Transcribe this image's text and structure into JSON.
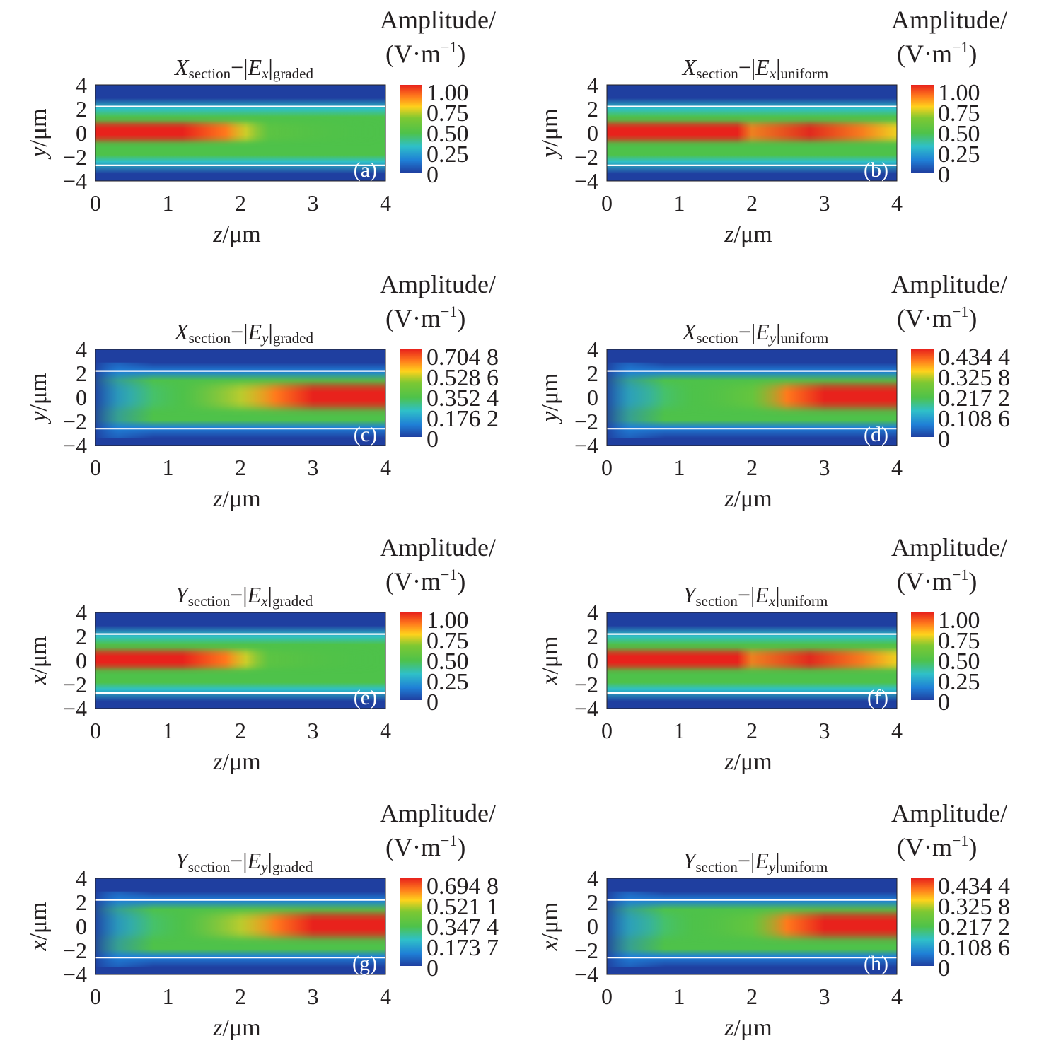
{
  "colors": {
    "jet": [
      "#1f3fa0",
      "#1f7fd6",
      "#2fc0c8",
      "#4ec24a",
      "#7dc832",
      "#ffd21c",
      "#ff7a1c",
      "#e8221c"
    ],
    "guide_line": "#ffffff",
    "frame": "#231f20"
  },
  "chart_data": [
    {
      "type": "heatmap",
      "panel_label": "(a)",
      "title": {
        "base": "X",
        "base_sub": "section",
        "dash": "−",
        "field": "E",
        "field_sub": "x",
        "suffix": "graded"
      },
      "xlabel": {
        "var": "z",
        "unit": "/μm"
      },
      "ylabel": {
        "var": "y",
        "unit": "/μm"
      },
      "xlim": [
        0,
        4
      ],
      "ylim": [
        -4,
        4
      ],
      "xticks": [
        "0",
        "1",
        "2",
        "3",
        "4"
      ],
      "yticks": [
        "4",
        "2",
        "0",
        "−2",
        "−4"
      ],
      "boundary_lines_y": [
        2.2,
        -2.7
      ],
      "colorbar": {
        "title": "Amplitude/",
        "unit": "(V·m",
        "unit_exp": "−1",
        "unit_close": ")",
        "ticks": [
          "1.00",
          "0.75",
          "0.50",
          "0.25",
          "0"
        ],
        "max": 1.0
      },
      "pattern": "Ex-graded"
    },
    {
      "type": "heatmap",
      "panel_label": "(b)",
      "title": {
        "base": "X",
        "base_sub": "section",
        "dash": "−",
        "field": "E",
        "field_sub": "x",
        "suffix": "uniform"
      },
      "xlabel": {
        "var": "z",
        "unit": "/μm"
      },
      "ylabel": {
        "var": "y",
        "unit": "/μm"
      },
      "xlim": [
        0,
        4
      ],
      "ylim": [
        -4,
        4
      ],
      "xticks": [
        "0",
        "1",
        "2",
        "3",
        "4"
      ],
      "yticks": [
        "4",
        "2",
        "0",
        "−2",
        "−4"
      ],
      "boundary_lines_y": [
        2.2,
        -2.7
      ],
      "colorbar": {
        "title": "Amplitude/",
        "unit": "(V·m",
        "unit_exp": "−1",
        "unit_close": ")",
        "ticks": [
          "1.00",
          "0.75",
          "0.50",
          "0.25",
          "0"
        ],
        "max": 1.0
      },
      "pattern": "Ex-uniform"
    },
    {
      "type": "heatmap",
      "panel_label": "(c)",
      "title": {
        "base": "X",
        "base_sub": "section",
        "dash": "−",
        "field": "E",
        "field_sub": "y",
        "suffix": "graded"
      },
      "xlabel": {
        "var": "z",
        "unit": "/μm"
      },
      "ylabel": {
        "var": "y",
        "unit": "/μm"
      },
      "xlim": [
        0,
        4
      ],
      "ylim": [
        -4,
        4
      ],
      "xticks": [
        "0",
        "1",
        "2",
        "3",
        "4"
      ],
      "yticks": [
        "4",
        "2",
        "0",
        "−2",
        "−4"
      ],
      "boundary_lines_y": [
        2.2,
        -2.6
      ],
      "colorbar": {
        "title": "Amplitude/",
        "unit": "(V·m",
        "unit_exp": "−1",
        "unit_close": ")",
        "ticks": [
          "0.704 8",
          "0.528 6",
          "0.352 4",
          "0.176 2",
          "0"
        ],
        "max": 0.7048
      },
      "pattern": "Ey-graded"
    },
    {
      "type": "heatmap",
      "panel_label": "(d)",
      "title": {
        "base": "X",
        "base_sub": "section",
        "dash": "−",
        "field": "E",
        "field_sub": "y",
        "suffix": "uniform"
      },
      "xlabel": {
        "var": "z",
        "unit": "/μm"
      },
      "ylabel": {
        "var": "y",
        "unit": "/μm"
      },
      "xlim": [
        0,
        4
      ],
      "ylim": [
        -4,
        4
      ],
      "xticks": [
        "0",
        "1",
        "2",
        "3",
        "4"
      ],
      "yticks": [
        "4",
        "2",
        "0",
        "−2",
        "−4"
      ],
      "boundary_lines_y": [
        2.2,
        -2.6
      ],
      "colorbar": {
        "title": "Amplitude/",
        "unit": "(V·m",
        "unit_exp": "−1",
        "unit_close": ")",
        "ticks": [
          "0.434 4",
          "0.325 8",
          "0.217 2",
          "0.108 6",
          "0"
        ],
        "max": 0.4344
      },
      "pattern": "Ey-uniform"
    },
    {
      "type": "heatmap",
      "panel_label": "(e)",
      "title": {
        "base": "Y",
        "base_sub": "section",
        "dash": "−",
        "field": "E",
        "field_sub": "x",
        "suffix": "graded"
      },
      "xlabel": {
        "var": "z",
        "unit": "/μm"
      },
      "ylabel": {
        "var": "x",
        "unit": "/μm"
      },
      "xlim": [
        0,
        4
      ],
      "ylim": [
        -4,
        4
      ],
      "xticks": [
        "0",
        "1",
        "2",
        "3",
        "4"
      ],
      "yticks": [
        "4",
        "2",
        "0",
        "−2",
        "−4"
      ],
      "boundary_lines_y": [
        2.2,
        -2.7
      ],
      "colorbar": {
        "title": "Amplitude/",
        "unit": "(V·m",
        "unit_exp": "−1",
        "unit_close": ")",
        "ticks": [
          "1.00",
          "0.75",
          "0.50",
          "0.25",
          "0"
        ],
        "max": 1.0
      },
      "pattern": "Ex-graded"
    },
    {
      "type": "heatmap",
      "panel_label": "(f)",
      "title": {
        "base": "Y",
        "base_sub": "section",
        "dash": "−",
        "field": "E",
        "field_sub": "x",
        "suffix": "uniform"
      },
      "xlabel": {
        "var": "z",
        "unit": "/μm"
      },
      "ylabel": {
        "var": "x",
        "unit": "/μm"
      },
      "xlim": [
        0,
        4
      ],
      "ylim": [
        -4,
        4
      ],
      "xticks": [
        "0",
        "1",
        "2",
        "3",
        "4"
      ],
      "yticks": [
        "4",
        "2",
        "0",
        "−2",
        "−4"
      ],
      "boundary_lines_y": [
        2.2,
        -2.7
      ],
      "colorbar": {
        "title": "Amplitude/",
        "unit": "(V·m",
        "unit_exp": "−1",
        "unit_close": ")",
        "ticks": [
          "1.00",
          "0.75",
          "0.50",
          "0.25",
          "0"
        ],
        "max": 1.0
      },
      "pattern": "Ex-uniform"
    },
    {
      "type": "heatmap",
      "panel_label": "(g)",
      "title": {
        "base": "Y",
        "base_sub": "section",
        "dash": "−",
        "field": "E",
        "field_sub": "y",
        "suffix": "graded"
      },
      "xlabel": {
        "var": "z",
        "unit": "/μm"
      },
      "ylabel": {
        "var": "x",
        "unit": "/μm"
      },
      "xlim": [
        0,
        4
      ],
      "ylim": [
        -4,
        4
      ],
      "xticks": [
        "0",
        "1",
        "2",
        "3",
        "4"
      ],
      "yticks": [
        "4",
        "2",
        "0",
        "−2",
        "−4"
      ],
      "boundary_lines_y": [
        2.2,
        -2.6
      ],
      "colorbar": {
        "title": "Amplitude/",
        "unit": "(V·m",
        "unit_exp": "−1",
        "unit_close": ")",
        "ticks": [
          "0.694 8",
          "0.521 1",
          "0.347 4",
          "0.173 7",
          "0"
        ],
        "max": 0.6948
      },
      "pattern": "Ey-graded"
    },
    {
      "type": "heatmap",
      "panel_label": "(h)",
      "title": {
        "base": "Y",
        "base_sub": "section",
        "dash": "−",
        "field": "E",
        "field_sub": "y",
        "suffix": "uniform"
      },
      "xlabel": {
        "var": "z",
        "unit": "/μm"
      },
      "ylabel": {
        "var": "x",
        "unit": "/μm"
      },
      "xlim": [
        0,
        4
      ],
      "ylim": [
        -4,
        4
      ],
      "xticks": [
        "0",
        "1",
        "2",
        "3",
        "4"
      ],
      "yticks": [
        "4",
        "2",
        "0",
        "−2",
        "−4"
      ],
      "boundary_lines_y": [
        2.2,
        -2.6
      ],
      "colorbar": {
        "title": "Amplitude/",
        "unit": "(V·m",
        "unit_exp": "−1",
        "unit_close": ")",
        "ticks": [
          "0.434 4",
          "0.325 8",
          "0.217 2",
          "0.108 6",
          "0"
        ],
        "max": 0.4344
      },
      "pattern": "Ey-uniform"
    }
  ]
}
